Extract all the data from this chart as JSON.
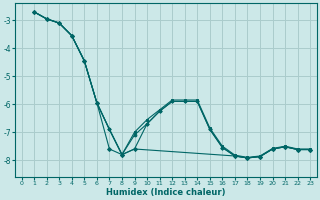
{
  "title": "",
  "xlabel": "Humidex (Indice chaleur)",
  "ylabel": "",
  "background_color": "#cce8e8",
  "grid_color": "#aacccc",
  "line_color": "#006666",
  "xlim": [
    -0.5,
    23.5
  ],
  "ylim": [
    -8.6,
    -2.4
  ],
  "yticks": [
    -8,
    -7,
    -6,
    -5,
    -4,
    -3
  ],
  "xticks": [
    0,
    1,
    2,
    3,
    4,
    5,
    6,
    7,
    8,
    9,
    10,
    11,
    12,
    13,
    14,
    15,
    16,
    17,
    18,
    19,
    20,
    21,
    22,
    23
  ],
  "series": [
    {
      "x": [
        1,
        2,
        3,
        4,
        5,
        6,
        7,
        8,
        9,
        17,
        18,
        19,
        20,
        21,
        22,
        23
      ],
      "y": [
        -2.7,
        -2.95,
        -3.1,
        -3.55,
        -4.45,
        -5.95,
        -7.6,
        -7.8,
        -7.6,
        -7.85,
        -7.92,
        -7.87,
        -7.6,
        -7.52,
        -7.62,
        -7.62
      ],
      "marker": "D",
      "markersize": 2.0
    },
    {
      "x": [
        1,
        2,
        3,
        4,
        5,
        6,
        7,
        8,
        9,
        10,
        11,
        12,
        13,
        14,
        15,
        16,
        17,
        18,
        19,
        20,
        21,
        22,
        23
      ],
      "y": [
        -2.7,
        -2.95,
        -3.1,
        -3.55,
        -4.45,
        -5.95,
        -6.9,
        -7.8,
        -7.6,
        -6.7,
        -6.25,
        -5.9,
        -5.9,
        -5.9,
        -6.9,
        -7.55,
        -7.85,
        -7.92,
        -7.87,
        -7.6,
        -7.52,
        -7.62,
        -7.62
      ],
      "marker": "D",
      "markersize": 2.0
    },
    {
      "x": [
        1,
        2,
        3,
        4,
        5,
        6,
        7,
        8,
        9,
        10,
        11,
        12,
        13,
        14,
        15,
        16,
        17,
        18,
        19,
        20,
        21,
        22,
        23
      ],
      "y": [
        -2.7,
        -2.95,
        -3.1,
        -3.55,
        -4.45,
        -5.95,
        -6.9,
        -7.8,
        -7.1,
        -6.7,
        -6.25,
        -5.9,
        -5.9,
        -5.9,
        -6.9,
        -7.55,
        -7.85,
        -7.92,
        -7.87,
        -7.6,
        -7.52,
        -7.62,
        -7.62
      ],
      "marker": "D",
      "markersize": 2.0
    },
    {
      "x": [
        1,
        2,
        3,
        4,
        5,
        6,
        7,
        8,
        9,
        10,
        11,
        12,
        13,
        14,
        15,
        16,
        17,
        18,
        19,
        20,
        21,
        22,
        23
      ],
      "y": [
        -2.7,
        -2.95,
        -3.1,
        -3.55,
        -4.45,
        -5.95,
        -6.9,
        -7.8,
        -7.0,
        -6.55,
        -6.2,
        -5.85,
        -5.85,
        -5.85,
        -6.85,
        -7.5,
        -7.82,
        -7.9,
        -7.85,
        -7.58,
        -7.5,
        -7.6,
        -7.6
      ],
      "marker": "D",
      "markersize": 2.0
    }
  ]
}
